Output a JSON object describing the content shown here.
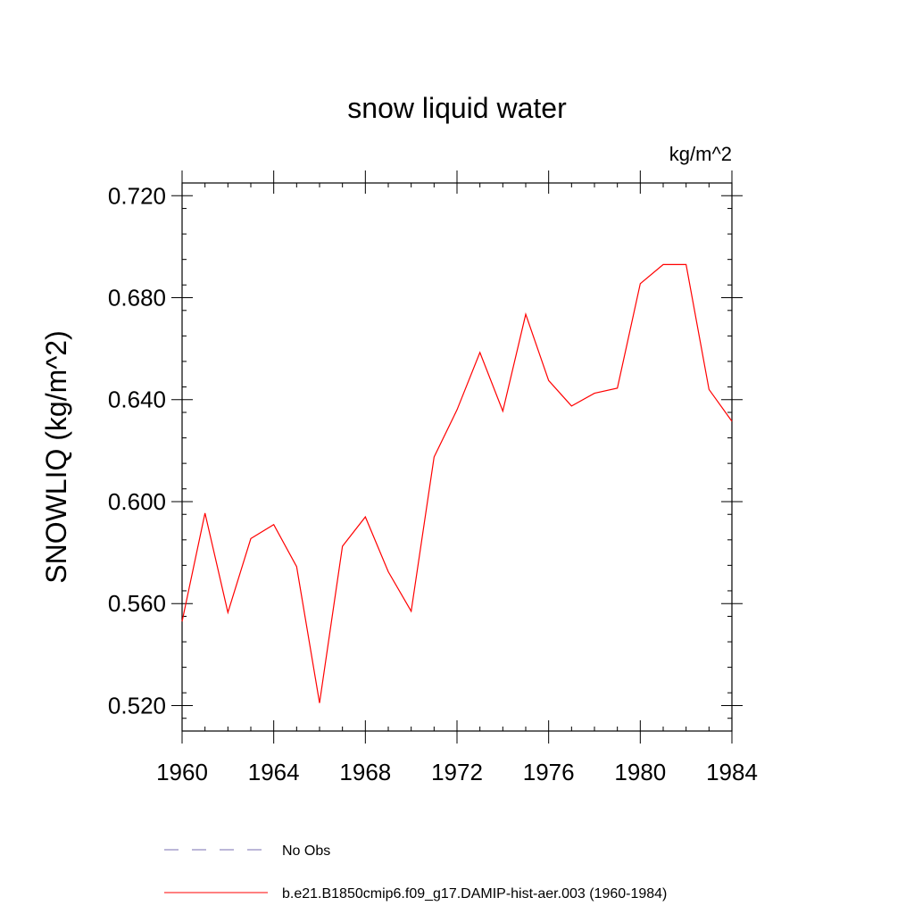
{
  "chart_data": {
    "type": "line",
    "title": "snow liquid water",
    "units_label": "kg/m^2",
    "ylabel": "SNOWLIQ  (kg/m^2)",
    "xlabel": "",
    "xlim": [
      1960,
      1984
    ],
    "ylim": [
      0.51,
      0.725
    ],
    "x_ticks": [
      1960,
      1964,
      1968,
      1972,
      1976,
      1980,
      1984
    ],
    "x_tick_labels": [
      "1960",
      "1964",
      "1968",
      "1972",
      "1976",
      "1980",
      "1984"
    ],
    "y_ticks": [
      0.52,
      0.56,
      0.6,
      0.64,
      0.68,
      0.72
    ],
    "y_tick_labels": [
      "0.520",
      "0.560",
      "0.600",
      "0.640",
      "0.680",
      "0.720"
    ],
    "grid": false,
    "legend_position": "bottom",
    "series": [
      {
        "name": "b.e21.B1850cmip6.f09_g17.DAMIP-hist-aer.003 (1960-1984)",
        "color": "#ff0000",
        "style": "solid",
        "x": [
          1960,
          1961,
          1962,
          1963,
          1964,
          1965,
          1966,
          1967,
          1968,
          1969,
          1970,
          1971,
          1972,
          1973,
          1974,
          1975,
          1976,
          1977,
          1978,
          1979,
          1980,
          1981,
          1982,
          1983,
          1984
        ],
        "values": [
          0.553,
          0.5955,
          0.5565,
          0.5855,
          0.591,
          0.5745,
          0.521,
          0.5825,
          0.594,
          0.5725,
          0.557,
          0.6175,
          0.636,
          0.6585,
          0.6355,
          0.6735,
          0.6475,
          0.6375,
          0.6425,
          0.6445,
          0.6855,
          0.693,
          0.693,
          0.644,
          0.6315
        ]
      }
    ],
    "legend": [
      {
        "label": "No Obs",
        "color": "#7a6fb0",
        "style": "dashed"
      },
      {
        "label": "b.e21.B1850cmip6.f09_g17.DAMIP-hist-aer.003 (1960-1984)",
        "color": "#ff0000",
        "style": "solid"
      }
    ]
  }
}
